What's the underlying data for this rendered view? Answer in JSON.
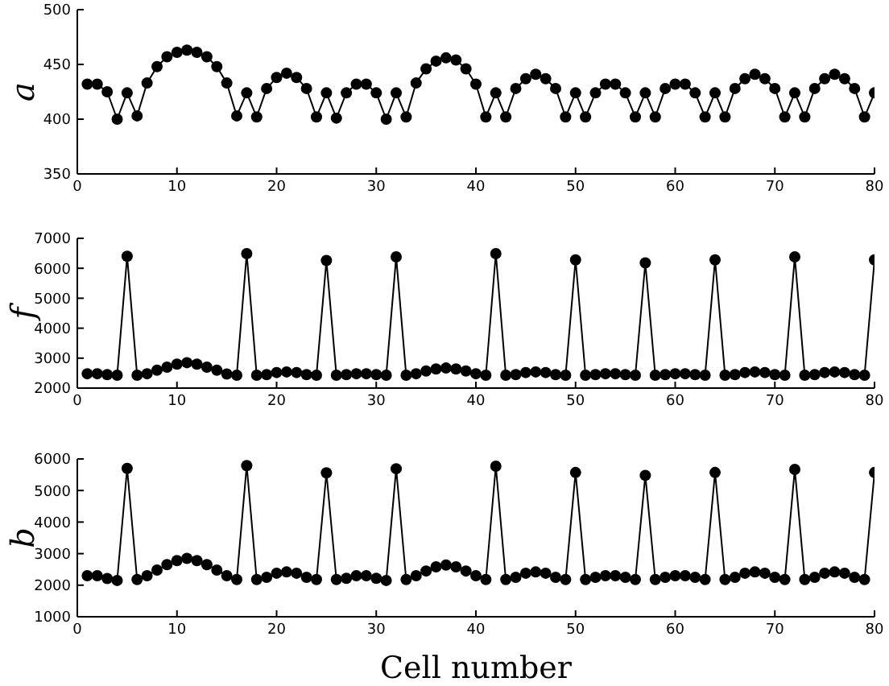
{
  "chart_data": [
    {
      "type": "line",
      "ylabel": "a",
      "marker": "circle",
      "line_style": "solid",
      "xlim": [
        0,
        80
      ],
      "xticks": [
        0,
        10,
        20,
        30,
        40,
        50,
        60,
        70,
        80
      ],
      "ylim": [
        350,
        500
      ],
      "yticks": [
        350,
        400,
        450,
        500
      ],
      "x": [
        1,
        2,
        3,
        4,
        5,
        6,
        7,
        8,
        9,
        10,
        11,
        12,
        13,
        14,
        15,
        16,
        17,
        18,
        19,
        20,
        21,
        22,
        23,
        24,
        25,
        26,
        27,
        28,
        29,
        30,
        31,
        32,
        33,
        34,
        35,
        36,
        37,
        38,
        39,
        40,
        41,
        42,
        43,
        44,
        45,
        46,
        47,
        48,
        49,
        50,
        51,
        52,
        53,
        54,
        55,
        56,
        57,
        58,
        59,
        60,
        61,
        62,
        63,
        64,
        65,
        66,
        67,
        68,
        69,
        70,
        71,
        72,
        73,
        74,
        75,
        76,
        77,
        78,
        79,
        80
      ],
      "series": [
        {
          "color": "#000000",
          "values": [
            432,
            432,
            425,
            400,
            424,
            403,
            433,
            448,
            457,
            461,
            463,
            461,
            457,
            448,
            433,
            403,
            424,
            402,
            428,
            438,
            442,
            438,
            428,
            402,
            424,
            401,
            424,
            432,
            432,
            424,
            400,
            424,
            402,
            433,
            446,
            453,
            456,
            454,
            446,
            432,
            402,
            424,
            402,
            428,
            437,
            441,
            437,
            428,
            402,
            424,
            402,
            424,
            432,
            432,
            424,
            402,
            424,
            402,
            428,
            432,
            432,
            424,
            402,
            424,
            402,
            428,
            437,
            441,
            437,
            428,
            402,
            424,
            402,
            428,
            437,
            441,
            437,
            428,
            402,
            424
          ]
        }
      ]
    },
    {
      "type": "line",
      "ylabel": "f",
      "marker": "circle",
      "line_style": "solid",
      "xlim": [
        0,
        80
      ],
      "xticks": [
        0,
        10,
        20,
        30,
        40,
        50,
        60,
        70,
        80
      ],
      "ylim": [
        2000,
        7000
      ],
      "yticks": [
        2000,
        3000,
        4000,
        5000,
        6000,
        7000
      ],
      "x": [
        1,
        2,
        3,
        4,
        5,
        6,
        7,
        8,
        9,
        10,
        11,
        12,
        13,
        14,
        15,
        16,
        17,
        18,
        19,
        20,
        21,
        22,
        23,
        24,
        25,
        26,
        27,
        28,
        29,
        30,
        31,
        32,
        33,
        34,
        35,
        36,
        37,
        38,
        39,
        40,
        41,
        42,
        43,
        44,
        45,
        46,
        47,
        48,
        49,
        50,
        51,
        52,
        53,
        54,
        55,
        56,
        57,
        58,
        59,
        60,
        61,
        62,
        63,
        64,
        65,
        66,
        67,
        68,
        69,
        70,
        71,
        72,
        73,
        74,
        75,
        76,
        77,
        78,
        79,
        80
      ],
      "series": [
        {
          "color": "#000000",
          "values": [
            2480,
            2480,
            2450,
            2430,
            6400,
            2430,
            2480,
            2600,
            2700,
            2800,
            2850,
            2800,
            2700,
            2600,
            2470,
            2430,
            6490,
            2430,
            2450,
            2520,
            2540,
            2520,
            2450,
            2430,
            6260,
            2430,
            2450,
            2480,
            2480,
            2450,
            2430,
            6380,
            2430,
            2480,
            2570,
            2640,
            2670,
            2640,
            2570,
            2480,
            2430,
            6490,
            2430,
            2450,
            2520,
            2540,
            2520,
            2450,
            2430,
            6280,
            2430,
            2450,
            2480,
            2480,
            2450,
            2430,
            6180,
            2430,
            2450,
            2480,
            2480,
            2450,
            2430,
            6280,
            2430,
            2450,
            2520,
            2540,
            2520,
            2450,
            2430,
            6380,
            2430,
            2450,
            2520,
            2540,
            2520,
            2450,
            2430,
            6280
          ]
        }
      ]
    },
    {
      "type": "line",
      "ylabel": "b",
      "xlabel": "Cell number",
      "marker": "circle",
      "line_style": "solid",
      "xlim": [
        0,
        80
      ],
      "xticks": [
        0,
        10,
        20,
        30,
        40,
        50,
        60,
        70,
        80
      ],
      "ylim": [
        1000,
        6000
      ],
      "yticks": [
        1000,
        2000,
        3000,
        4000,
        5000,
        6000
      ],
      "x": [
        1,
        2,
        3,
        4,
        5,
        6,
        7,
        8,
        9,
        10,
        11,
        12,
        13,
        14,
        15,
        16,
        17,
        18,
        19,
        20,
        21,
        22,
        23,
        24,
        25,
        26,
        27,
        28,
        29,
        30,
        31,
        32,
        33,
        34,
        35,
        36,
        37,
        38,
        39,
        40,
        41,
        42,
        43,
        44,
        45,
        46,
        47,
        48,
        49,
        50,
        51,
        52,
        53,
        54,
        55,
        56,
        57,
        58,
        59,
        60,
        61,
        62,
        63,
        64,
        65,
        66,
        67,
        68,
        69,
        70,
        71,
        72,
        73,
        74,
        75,
        76,
        77,
        78,
        79,
        80
      ],
      "series": [
        {
          "color": "#000000",
          "values": [
            2300,
            2300,
            2210,
            2150,
            5700,
            2180,
            2300,
            2480,
            2650,
            2780,
            2850,
            2780,
            2650,
            2480,
            2300,
            2180,
            5790,
            2180,
            2250,
            2380,
            2420,
            2380,
            2250,
            2180,
            5560,
            2180,
            2220,
            2300,
            2300,
            2220,
            2150,
            5690,
            2180,
            2300,
            2450,
            2580,
            2640,
            2580,
            2450,
            2300,
            2180,
            5770,
            2180,
            2250,
            2380,
            2420,
            2380,
            2250,
            2180,
            5570,
            2180,
            2250,
            2300,
            2300,
            2250,
            2180,
            5480,
            2180,
            2250,
            2300,
            2300,
            2250,
            2180,
            5570,
            2180,
            2250,
            2380,
            2420,
            2380,
            2250,
            2180,
            5670,
            2180,
            2250,
            2380,
            2420,
            2380,
            2250,
            2180,
            5570
          ]
        }
      ]
    }
  ]
}
